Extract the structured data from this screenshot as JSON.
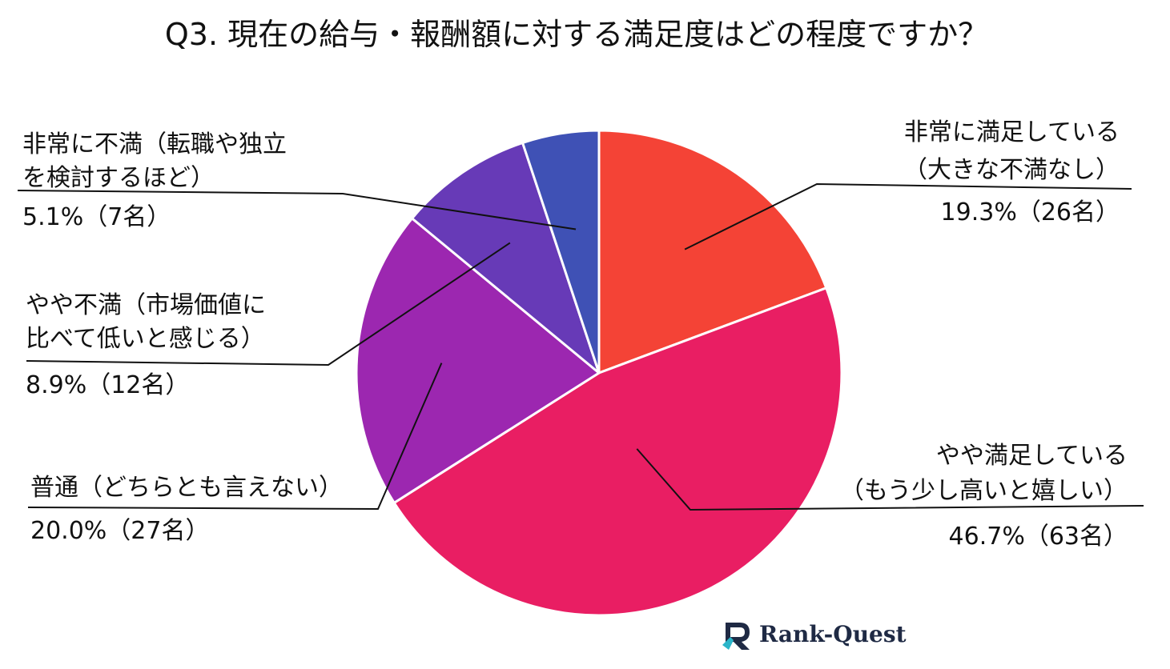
{
  "chart_data": {
    "type": "pie",
    "title": "Q3. 現在の給与・報酬額に対する満足度はどの程度ですか？",
    "slices": [
      {
        "label_lines": [
          "非常に満足している",
          "（大きな不満なし）"
        ],
        "value_label": "19.3%（26名）",
        "percent": 19.3,
        "count": 26,
        "color": "#f44336"
      },
      {
        "label_lines": [
          "やや満足している",
          "（もう少し高いと嬉しい）"
        ],
        "value_label": "46.7%（63名）",
        "percent": 46.7,
        "count": 63,
        "color": "#e91e63"
      },
      {
        "label_lines": [
          "普通（どちらとも言えない）"
        ],
        "value_label": "20.0%（27名）",
        "percent": 20.0,
        "count": 27,
        "color": "#9c27b0"
      },
      {
        "label_lines": [
          "やや不満（市場価値に",
          "比べて低いと感じる）"
        ],
        "value_label": "8.9%（12名）",
        "percent": 8.9,
        "count": 12,
        "color": "#673ab7"
      },
      {
        "label_lines": [
          "非常に不満（転職や独立",
          "を検討するほど）"
        ],
        "value_label": "5.1%（7名）",
        "percent": 5.1,
        "count": 7,
        "color": "#3f51b5"
      }
    ]
  },
  "logo": {
    "text": "Rank-Quest",
    "icon": "rank-quest-logo-icon"
  }
}
